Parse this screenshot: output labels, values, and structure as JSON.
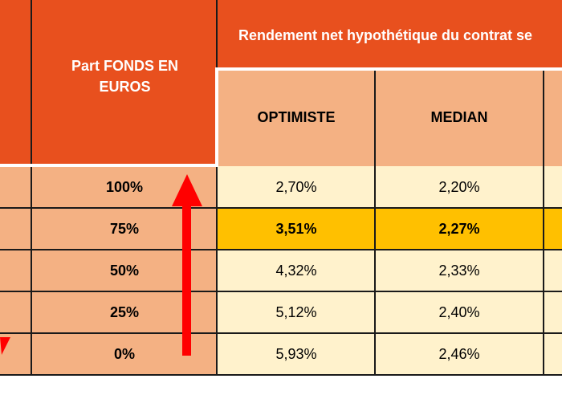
{
  "header": {
    "fonds_euros_label": "Part FONDS EN EUROS",
    "rendement_title": "Rendement net hypothétique du contrat se",
    "scenarios": [
      "OPTIMISTE",
      "MEDIAN"
    ]
  },
  "rows": [
    {
      "part": "100%",
      "optimiste": "2,70%",
      "median": "2,20%",
      "highlight": false
    },
    {
      "part": "75%",
      "optimiste": "3,51%",
      "median": "2,27%",
      "highlight": true
    },
    {
      "part": "50%",
      "optimiste": "4,32%",
      "median": "2,33%",
      "highlight": false
    },
    {
      "part": "25%",
      "optimiste": "5,12%",
      "median": "2,40%",
      "highlight": false
    },
    {
      "part": "0%",
      "optimiste": "5,93%",
      "median": "2,46%",
      "highlight": false
    }
  ],
  "colors": {
    "orange": "#e8501e",
    "peach": "#f4b183",
    "cream": "#fff2cc",
    "highlight": "#ffc000",
    "arrow": "#ff0000"
  }
}
